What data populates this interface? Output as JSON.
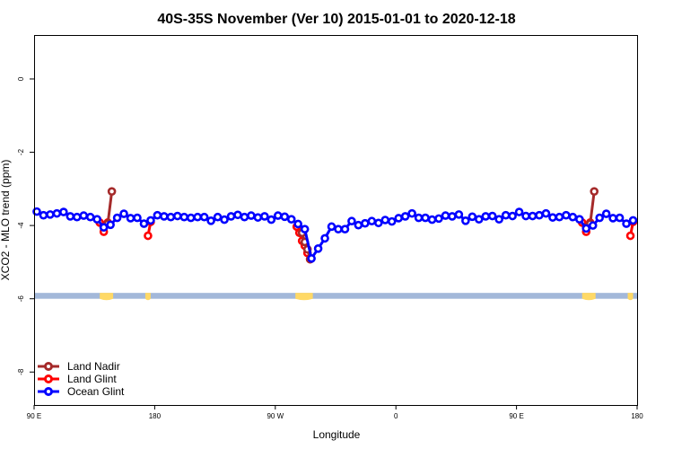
{
  "colors": {
    "land_nadir": "#a52a2a",
    "land_glint": "#ff0000",
    "ocean_glint": "#0000ff",
    "land_strip": "#ffd966",
    "ocean_strip": "#a3b8d9",
    "axis": "#000000",
    "background": "#ffffff"
  },
  "chart_data": {
    "type": "line",
    "title": "40S-35S November (Ver 10)   2015-01-01 to 2020-12-18",
    "xlabel": "Longitude",
    "ylabel": "XCO2 - MLO trend (ppm)",
    "xlim": [
      90,
      450
    ],
    "ylim": [
      -8.9,
      1.2
    ],
    "x_tick_values": [
      90,
      180,
      270,
      360,
      450,
      540
    ],
    "x_tick_labels": [
      "90 E",
      "180",
      "90 W",
      "0",
      "90 E",
      "180"
    ],
    "y_tick_values": [
      0,
      -2,
      -4,
      -6,
      -8
    ],
    "y_tick_labels": [
      "0",
      "-2",
      "-4",
      "-6",
      "-8"
    ],
    "legend_position": "bottom-left",
    "land_strip": {
      "y_range": [
        -5.84,
        -6.0
      ],
      "segments": [
        {
          "lon": [
            139,
            149
          ],
          "dip": -6.0
        },
        {
          "lon": [
            173,
            177
          ],
          "dip": -6.0
        },
        {
          "lon": [
            285,
            298
          ],
          "dip": -6.0
        },
        {
          "lon": [
            499,
            509
          ],
          "dip": -6.0
        },
        {
          "lon": [
            533,
            537
          ],
          "dip": -6.0
        }
      ]
    },
    "series": [
      {
        "name": "Land Nadir",
        "color_key": "land_nadir",
        "segments": [
          {
            "x": [
              142,
              145,
              148
            ],
            "y": [
              -4.05,
              -3.95,
              -3.07
            ]
          },
          {
            "x": [
              502,
              505,
              508
            ],
            "y": [
              -4.05,
              -3.95,
              -3.07
            ]
          },
          {
            "x": [
              290,
              292,
              294,
              296
            ],
            "y": [
              -4.2,
              -4.45,
              -4.65,
              -4.92
            ]
          }
        ]
      },
      {
        "name": "Land Glint",
        "color_key": "land_glint",
        "segments": [
          {
            "x": [
              139,
              142,
              145
            ],
            "y": [
              -3.92,
              -4.17,
              -3.92
            ]
          },
          {
            "x": [
              175,
              177
            ],
            "y": [
              -4.28,
              -3.9
            ]
          },
          {
            "x": [
              286,
              288,
              290,
              292,
              294,
              296
            ],
            "y": [
              -4.03,
              -4.2,
              -4.42,
              -4.55,
              -4.75,
              -4.92
            ]
          },
          {
            "x": [
              499,
              502,
              505
            ],
            "y": [
              -3.92,
              -4.17,
              -3.92
            ]
          },
          {
            "x": [
              535,
              537
            ],
            "y": [
              -4.28,
              -3.9
            ]
          }
        ]
      },
      {
        "name": "Ocean Glint",
        "color_key": "ocean_glint",
        "segments": [
          {
            "x": [
              92,
              97,
              102,
              107,
              112,
              117,
              122,
              127,
              132,
              137,
              142,
              147,
              152,
              157,
              162,
              167,
              172,
              177,
              182,
              187,
              192,
              197,
              202,
              207,
              212,
              217,
              222,
              227,
              232,
              237,
              242,
              247,
              252,
              257,
              262,
              267,
              272,
              277,
              282,
              287,
              292,
              297,
              302,
              307,
              312,
              317,
              322,
              327,
              332,
              337,
              342,
              347,
              352,
              357,
              362,
              367,
              372,
              377,
              382,
              387,
              392,
              397,
              402,
              407,
              412,
              417,
              422,
              427,
              432,
              437,
              442,
              447,
              452,
              457,
              462,
              467,
              472,
              477,
              482,
              487,
              492,
              497,
              502,
              507,
              512,
              517,
              522,
              527,
              532,
              537
            ],
            "y": [
              -3.62,
              -3.72,
              -3.7,
              -3.67,
              -3.63,
              -3.75,
              -3.77,
              -3.73,
              -3.77,
              -3.83,
              -4.05,
              -3.98,
              -3.79,
              -3.68,
              -3.8,
              -3.79,
              -3.95,
              -3.86,
              -3.72,
              -3.75,
              -3.77,
              -3.74,
              -3.77,
              -3.79,
              -3.77,
              -3.77,
              -3.87,
              -3.77,
              -3.84,
              -3.75,
              -3.71,
              -3.77,
              -3.73,
              -3.78,
              -3.75,
              -3.84,
              -3.73,
              -3.76,
              -3.83,
              -3.96,
              -4.1,
              -4.9,
              -4.63,
              -4.35,
              -4.03,
              -4.1,
              -4.1,
              -3.88,
              -3.99,
              -3.94,
              -3.88,
              -3.93,
              -3.85,
              -3.89,
              -3.8,
              -3.75,
              -3.67,
              -3.79,
              -3.79,
              -3.84,
              -3.81,
              -3.73,
              -3.75,
              -3.7,
              -3.87,
              -3.76,
              -3.83,
              -3.75,
              -3.74,
              -3.83,
              -3.72,
              -3.74,
              -3.63,
              -3.74,
              -3.74,
              -3.72,
              -3.67,
              -3.78,
              -3.77,
              -3.72,
              -3.77,
              -3.83,
              -4.08,
              -4.0,
              -3.79,
              -3.68,
              -3.8,
              -3.79,
              -3.95,
              -3.86
            ]
          }
        ]
      }
    ]
  }
}
